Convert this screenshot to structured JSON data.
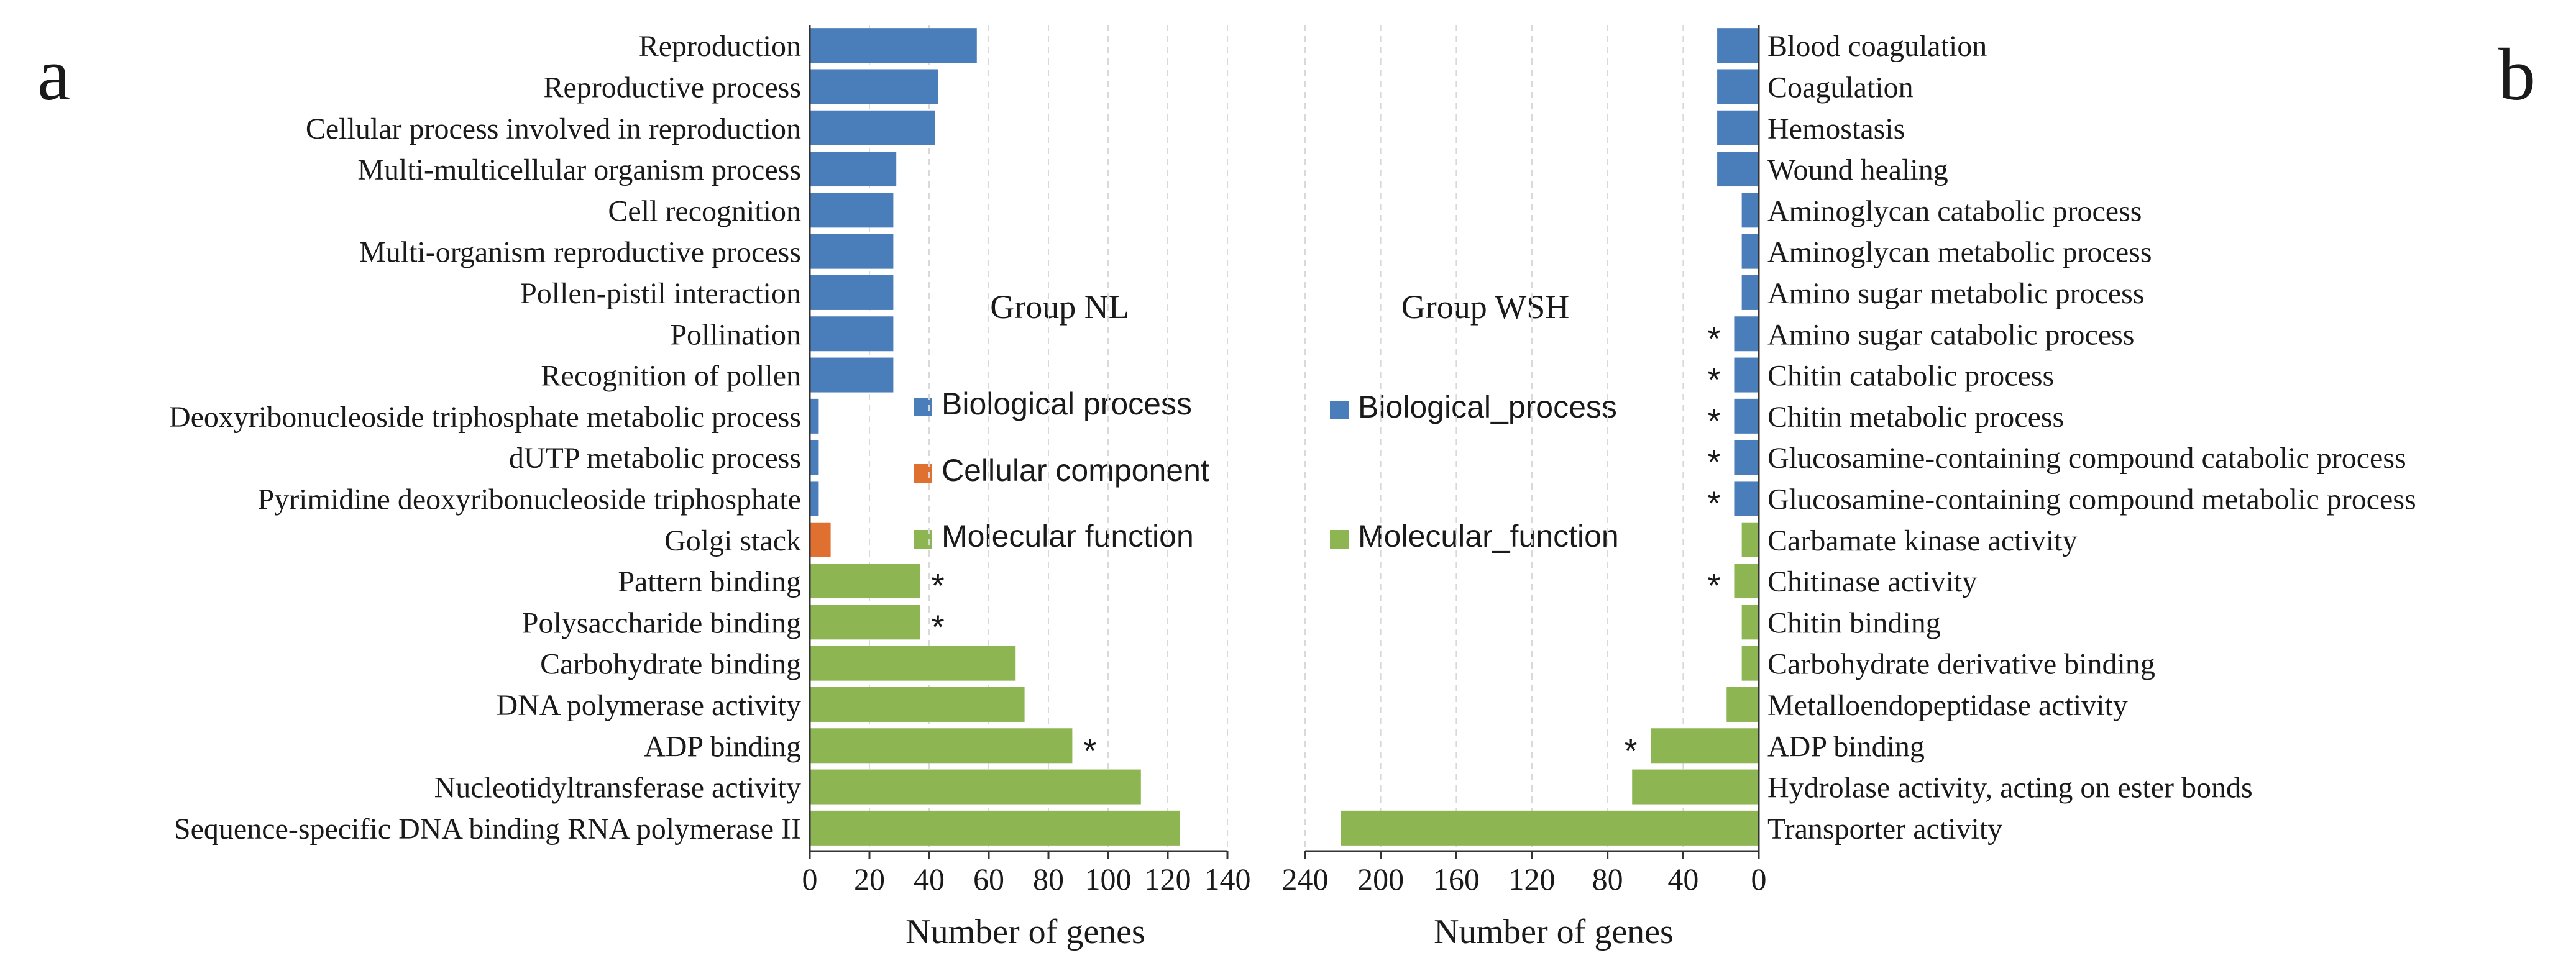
{
  "chart_data": [
    {
      "type": "bar",
      "orientation": "horizontal",
      "panel_label": "a",
      "title": "Group NL",
      "xlabel": "Number of  genes",
      "xlim": [
        0,
        140
      ],
      "xticks": [
        "0",
        "20",
        "40",
        "60",
        "80",
        "100",
        "120",
        "140"
      ],
      "legend": [
        {
          "label": "Biological process",
          "color": "#4a7ebb"
        },
        {
          "label": "Cellular component",
          "color": "#e07030"
        },
        {
          "label": "Molecular function",
          "color": "#8db653"
        }
      ],
      "categories": [
        "Reproduction",
        "Reproductive process",
        "Cellular process involved in reproduction",
        "Multi-multicellular organism process",
        "Cell recognition",
        "Multi-organism reproductive process",
        "Pollen-pistil interaction",
        "Pollination",
        "Recognition of pollen",
        "Deoxyribonucleoside triphosphate metabolic process",
        "dUTP metabolic process",
        "Pyrimidine deoxyribonucleoside triphosphate",
        "Golgi stack",
        "Pattern binding",
        "Polysaccharide binding",
        "Carbohydrate binding",
        "DNA polymerase activity",
        "ADP binding",
        "Nucleotidyltransferase activity",
        "Sequence-specific DNA binding RNA polymerase II"
      ],
      "values": [
        56,
        43,
        42,
        29,
        28,
        28,
        28,
        28,
        28,
        3,
        3,
        3,
        7,
        37,
        37,
        69,
        72,
        88,
        111,
        124
      ],
      "groups": [
        "bp",
        "bp",
        "bp",
        "bp",
        "bp",
        "bp",
        "bp",
        "bp",
        "bp",
        "bp",
        "bp",
        "bp",
        "cc",
        "mf",
        "mf",
        "mf",
        "mf",
        "mf",
        "mf",
        "mf"
      ],
      "significant": [
        false,
        false,
        false,
        false,
        false,
        false,
        false,
        false,
        false,
        false,
        false,
        false,
        false,
        true,
        true,
        false,
        false,
        true,
        false,
        false
      ],
      "significance_marker": "*"
    },
    {
      "type": "bar",
      "orientation": "horizontal",
      "panel_label": "b",
      "title": "Group WSH",
      "xlabel": "Number of genes",
      "xlim": [
        240,
        0
      ],
      "xticks": [
        "240",
        "200",
        "160",
        "120",
        "80",
        "40",
        "0"
      ],
      "legend": [
        {
          "label": "Biological_process",
          "color": "#4a7ebb"
        },
        {
          "label": "Molecular_function",
          "color": "#8db653"
        }
      ],
      "categories": [
        "Blood coagulation",
        "Coagulation",
        "Hemostasis",
        "Wound healing",
        "Aminoglycan catabolic process",
        "Aminoglycan metabolic process",
        "Amino sugar metabolic process",
        "Amino sugar catabolic process",
        "Chitin catabolic process",
        "Chitin metabolic process",
        "Glucosamine-containing compound catabolic process",
        "Glucosamine-containing compound metabolic process",
        "Carbamate kinase activity",
        "Chitinase activity",
        "Chitin binding",
        "Carbohydrate derivative binding",
        "Metalloendopeptidase activity",
        "ADP binding",
        "Hydrolase activity, acting on ester bonds",
        "Transporter activity"
      ],
      "values": [
        22,
        22,
        22,
        22,
        9,
        9,
        9,
        13,
        13,
        13,
        13,
        13,
        9,
        13,
        9,
        9,
        17,
        57,
        67,
        221
      ],
      "groups": [
        "bp",
        "bp",
        "bp",
        "bp",
        "bp",
        "bp",
        "bp",
        "bp",
        "bp",
        "bp",
        "bp",
        "bp",
        "mf",
        "mf",
        "mf",
        "mf",
        "mf",
        "mf",
        "mf",
        "mf"
      ],
      "significant": [
        false,
        false,
        false,
        false,
        false,
        false,
        false,
        true,
        true,
        true,
        true,
        true,
        false,
        true,
        false,
        false,
        false,
        true,
        false,
        false
      ],
      "significance_marker": "*"
    }
  ]
}
